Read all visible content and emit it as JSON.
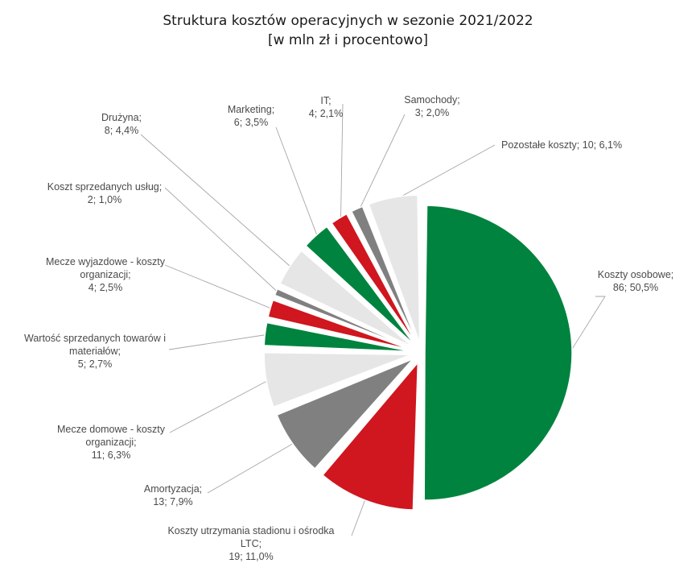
{
  "chart_data": {
    "type": "pie",
    "title": "Struktura kosztów operacyjnych w sezonie 2021/2022",
    "subtitle": "[w mln zł i procentowo]",
    "slices": [
      {
        "category": "Koszty osobowe",
        "value": 86,
        "percent": "50,5%",
        "color": "#00833e",
        "label_lines": [
          "Koszty osobowe;",
          "86; 50,5%"
        ]
      },
      {
        "category": "Koszty utrzymania stadionu i ośrodka LTC",
        "value": 19,
        "percent": "11,0%",
        "color": "#d0161e",
        "label_lines": [
          "Koszty utrzymania stadionu i ośrodka",
          "LTC;",
          "19; 11,0%"
        ]
      },
      {
        "category": "Amortyzacja",
        "value": 13,
        "percent": "7,9%",
        "color": "#808080",
        "label_lines": [
          "Amortyzacja;",
          "13; 7,9%"
        ]
      },
      {
        "category": "Mecze domowe - koszty organizacji",
        "value": 11,
        "percent": "6,3%",
        "color": "#e6e6e6",
        "label_lines": [
          "Mecze domowe - koszty",
          "organizacji;",
          "11; 6,3%"
        ]
      },
      {
        "category": "Wartość sprzedanych towarów i materiałów",
        "value": 5,
        "percent": "2,7%",
        "color": "#00833e",
        "label_lines": [
          "Wartość sprzedanych towarów i",
          "materiałów;",
          "5; 2,7%"
        ]
      },
      {
        "category": "Mecze wyjazdowe - koszty organizacji",
        "value": 4,
        "percent": "2,5%",
        "color": "#d0161e",
        "label_lines": [
          "Mecze wyjazdowe - koszty",
          "organizacji;",
          "4; 2,5%"
        ]
      },
      {
        "category": "Koszt sprzedanych usług",
        "value": 2,
        "percent": "1,0%",
        "color": "#808080",
        "label_lines": [
          "Koszt sprzedanych usług;",
          "2; 1,0%"
        ]
      },
      {
        "category": "Drużyna",
        "value": 8,
        "percent": "4,4%",
        "color": "#e6e6e6",
        "label_lines": [
          "Drużyna;",
          "8; 4,4%"
        ]
      },
      {
        "category": "Marketing",
        "value": 6,
        "percent": "3,5%",
        "color": "#00833e",
        "label_lines": [
          "Marketing;",
          "6; 3,5%"
        ]
      },
      {
        "category": "IT",
        "value": 4,
        "percent": "2,1%",
        "color": "#d0161e",
        "label_lines": [
          "IT;",
          "4; 2,1%"
        ]
      },
      {
        "category": "Samochody",
        "value": 3,
        "percent": "2,0%",
        "color": "#808080",
        "label_lines": [
          "Samochody;",
          "3; 2,0%"
        ]
      },
      {
        "category": "Pozostałe koszty",
        "value": 10,
        "percent": "6,1%",
        "color": "#e6e6e6",
        "label_lines": [
          "Pozostałe koszty; 10; 6,1%"
        ]
      }
    ]
  }
}
